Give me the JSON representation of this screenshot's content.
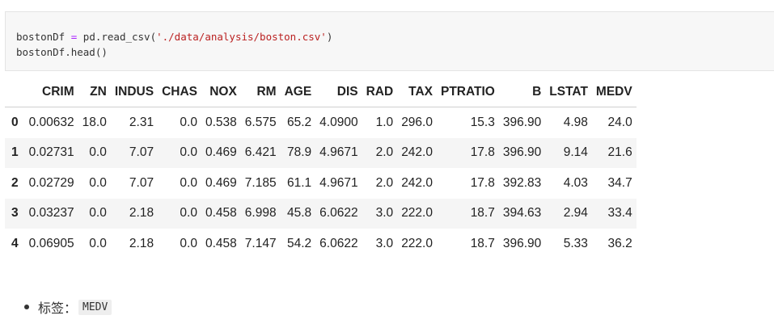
{
  "code_cell": {
    "line1_var": "bostonDf",
    "line1_op": " = ",
    "line1_call": "pd.read_csv(",
    "line1_str": "'./data/analysis/boston.csv'",
    "line1_close": ")",
    "line2": "bostonDf.head()"
  },
  "table": {
    "columns": [
      "CRIM",
      "ZN",
      "INDUS",
      "CHAS",
      "NOX",
      "RM",
      "AGE",
      "DIS",
      "RAD",
      "TAX",
      "PTRATIO",
      "B",
      "LSTAT",
      "MEDV"
    ],
    "rows": [
      {
        "index": "0",
        "values": [
          "0.00632",
          "18.0",
          "2.31",
          "0.0",
          "0.538",
          "6.575",
          "65.2",
          "4.0900",
          "1.0",
          "296.0",
          "15.3",
          "396.90",
          "4.98",
          "24.0"
        ]
      },
      {
        "index": "1",
        "values": [
          "0.02731",
          "0.0",
          "7.07",
          "0.0",
          "0.469",
          "6.421",
          "78.9",
          "4.9671",
          "2.0",
          "242.0",
          "17.8",
          "396.90",
          "9.14",
          "21.6"
        ]
      },
      {
        "index": "2",
        "values": [
          "0.02729",
          "0.0",
          "7.07",
          "0.0",
          "0.469",
          "7.185",
          "61.1",
          "4.9671",
          "2.0",
          "242.0",
          "17.8",
          "392.83",
          "4.03",
          "34.7"
        ]
      },
      {
        "index": "3",
        "values": [
          "0.03237",
          "0.0",
          "2.18",
          "0.0",
          "0.458",
          "6.998",
          "45.8",
          "6.0622",
          "3.0",
          "222.0",
          "18.7",
          "394.63",
          "2.94",
          "33.4"
        ]
      },
      {
        "index": "4",
        "values": [
          "0.06905",
          "0.0",
          "2.18",
          "0.0",
          "0.458",
          "7.147",
          "54.2",
          "6.0622",
          "3.0",
          "222.0",
          "18.7",
          "396.90",
          "5.33",
          "36.2"
        ]
      }
    ]
  },
  "note": {
    "label": "标签：",
    "code": "MEDV"
  }
}
